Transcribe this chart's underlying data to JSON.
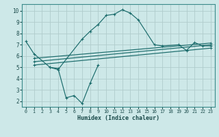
{
  "xlabel": "Humidex (Indice chaleur)",
  "xlim": [
    -0.5,
    23.5
  ],
  "ylim": [
    1.5,
    10.6
  ],
  "xticks": [
    0,
    1,
    2,
    3,
    4,
    5,
    6,
    7,
    8,
    9,
    10,
    11,
    12,
    13,
    14,
    15,
    16,
    17,
    18,
    19,
    20,
    21,
    22,
    23
  ],
  "yticks": [
    2,
    3,
    4,
    5,
    6,
    7,
    8,
    9,
    10
  ],
  "bg_color": "#cde8e8",
  "grid_color": "#b0cccc",
  "line_color": "#1a6b6b",
  "curve_upper": {
    "x": [
      0,
      1,
      3,
      4,
      7,
      8,
      9,
      10,
      11,
      12,
      13,
      14,
      16,
      17,
      19,
      20,
      21,
      22,
      23
    ],
    "y": [
      7.3,
      6.2,
      5.0,
      4.8,
      7.5,
      8.2,
      8.8,
      9.6,
      9.7,
      10.1,
      9.8,
      9.2,
      7.0,
      6.9,
      7.0,
      6.5,
      7.2,
      6.9,
      6.9
    ]
  },
  "curve_lower": {
    "x": [
      3,
      4,
      5,
      6,
      7,
      8,
      9
    ],
    "y": [
      5.0,
      4.9,
      2.3,
      2.5,
      1.8,
      3.6,
      5.2
    ]
  },
  "lines": [
    {
      "x": [
        1,
        23
      ],
      "y": [
        5.2,
        6.7
      ]
    },
    {
      "x": [
        1,
        23
      ],
      "y": [
        5.5,
        7.0
      ]
    },
    {
      "x": [
        1,
        23
      ],
      "y": [
        5.8,
        7.15
      ]
    }
  ]
}
